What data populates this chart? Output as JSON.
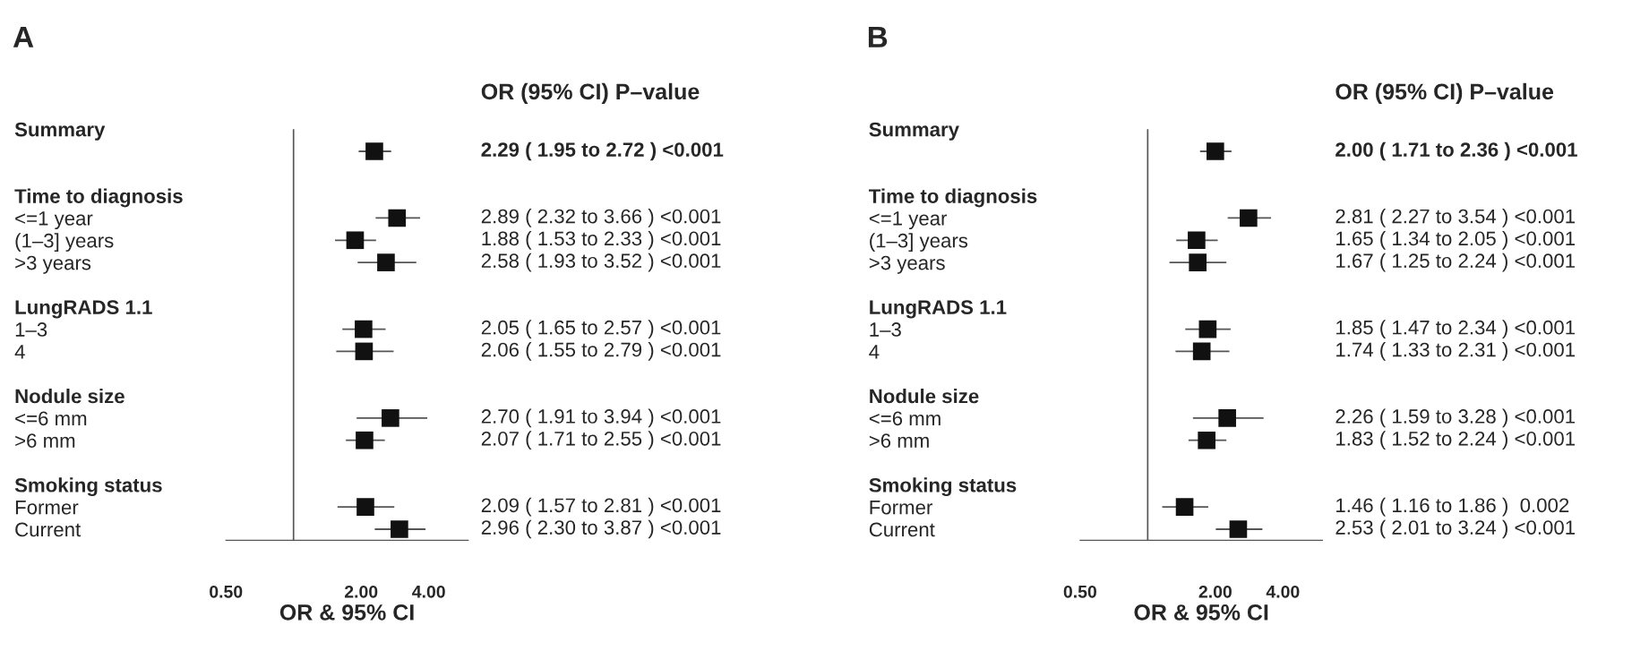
{
  "chart_data": [
    {
      "type": "scatter",
      "title": "A",
      "orientation": "horizontal",
      "log": "x",
      "marker": "square",
      "grid": false,
      "legend": false,
      "categories": [
        "Summary",
        null,
        null,
        "Time to diagnosis",
        "<=1 year",
        "(1–3] years",
        ">3 years",
        null,
        "LungRADS 1.1",
        "1–3",
        "4",
        null,
        "Nodule size",
        "<=6 mm",
        ">6 mm",
        null,
        "Smoking status",
        "Former",
        "Current"
      ],
      "series": [
        {
          "color": "#111111",
          "values": [
            null,
            2.29,
            null,
            null,
            2.89,
            1.88,
            2.58,
            null,
            null,
            2.05,
            2.06,
            null,
            null,
            2.7,
            2.07,
            null,
            null,
            2.09,
            2.96
          ],
          "errors": [
            null,
            [
              1.95,
              2.72
            ],
            null,
            null,
            [
              2.32,
              3.66
            ],
            [
              1.53,
              2.33
            ],
            [
              1.93,
              3.52
            ],
            null,
            null,
            [
              1.65,
              2.57
            ],
            [
              1.55,
              2.79
            ],
            null,
            null,
            [
              1.91,
              3.94
            ],
            [
              1.71,
              2.55
            ],
            null,
            null,
            [
              1.57,
              2.81
            ],
            [
              2.3,
              3.87
            ]
          ],
          "value_labels": [
            null,
            "2.29 ( 1.95 to 2.72 ) <0.001",
            null,
            null,
            "2.89 ( 2.32 to 3.66 ) <0.001",
            "1.88 ( 1.53 to 2.33 ) <0.001",
            "2.58 ( 1.93 to 3.52 ) <0.001",
            null,
            null,
            "2.05 ( 1.65 to 2.57 ) <0.001",
            "2.06 ( 1.55 to 2.79 ) <0.001",
            null,
            null,
            "2.70 ( 1.91 to 3.94 ) <0.001",
            "2.07 ( 1.71 to 2.55 ) <0.001",
            null,
            null,
            "2.09 ( 1.57 to 2.81 ) <0.001",
            "2.96 ( 2.30 to 3.87 ) <0.001"
          ]
        }
      ],
      "xlim": [
        0.5,
        6
      ],
      "xticks": [
        {
          "value": 0.5,
          "label": "0.50"
        },
        {
          "value": 2,
          "label": "2.00"
        },
        {
          "value": 4,
          "label": "4.00"
        }
      ],
      "xlabel": "OR & 95% CI",
      "ref_lines": [
        {
          "axis": "x",
          "value": 1
        }
      ],
      "annotations": [
        "OR (95% CI) P–value"
      ]
    },
    {
      "type": "scatter",
      "title": "B",
      "orientation": "horizontal",
      "log": "x",
      "marker": "square",
      "grid": false,
      "legend": false,
      "categories": [
        "Summary",
        null,
        null,
        "Time to diagnosis",
        "<=1 year",
        "(1–3] years",
        ">3 years",
        null,
        "LungRADS 1.1",
        "1–3",
        "4",
        null,
        "Nodule size",
        "<=6 mm",
        ">6 mm",
        null,
        "Smoking status",
        "Former",
        "Current"
      ],
      "series": [
        {
          "color": "#111111",
          "values": [
            null,
            2.0,
            null,
            null,
            2.81,
            1.65,
            1.67,
            null,
            null,
            1.85,
            1.74,
            null,
            null,
            2.26,
            1.83,
            null,
            null,
            1.46,
            2.53
          ],
          "errors": [
            null,
            [
              1.71,
              2.36
            ],
            null,
            null,
            [
              2.27,
              3.54
            ],
            [
              1.34,
              2.05
            ],
            [
              1.25,
              2.24
            ],
            null,
            null,
            [
              1.47,
              2.34
            ],
            [
              1.33,
              2.31
            ],
            null,
            null,
            [
              1.59,
              3.28
            ],
            [
              1.52,
              2.24
            ],
            null,
            null,
            [
              1.16,
              1.86
            ],
            [
              2.01,
              3.24
            ]
          ],
          "value_labels": [
            null,
            "2.00 ( 1.71 to 2.36 ) <0.001",
            null,
            null,
            "2.81 ( 2.27 to 3.54 ) <0.001",
            "1.65 ( 1.34 to 2.05 ) <0.001",
            "1.67 ( 1.25 to 2.24 ) <0.001",
            null,
            null,
            "1.85 ( 1.47 to 2.34 ) <0.001",
            "1.74 ( 1.33 to 2.31 ) <0.001",
            null,
            null,
            "2.26 ( 1.59 to 3.28 ) <0.001",
            "1.83 ( 1.52 to 2.24 ) <0.001",
            null,
            null,
            "1.46 ( 1.16 to 1.86 )  0.002",
            "2.53 ( 2.01 to 3.24 ) <0.001"
          ]
        }
      ],
      "xlim": [
        0.5,
        6
      ],
      "xticks": [
        {
          "value": 0.5,
          "label": "0.50"
        },
        {
          "value": 2,
          "label": "2.00"
        },
        {
          "value": 4,
          "label": "4.00"
        }
      ],
      "xlabel": "OR & 95% CI",
      "ref_lines": [
        {
          "axis": "x",
          "value": 1
        }
      ],
      "annotations": [
        "OR (95% CI) P–value"
      ]
    }
  ]
}
